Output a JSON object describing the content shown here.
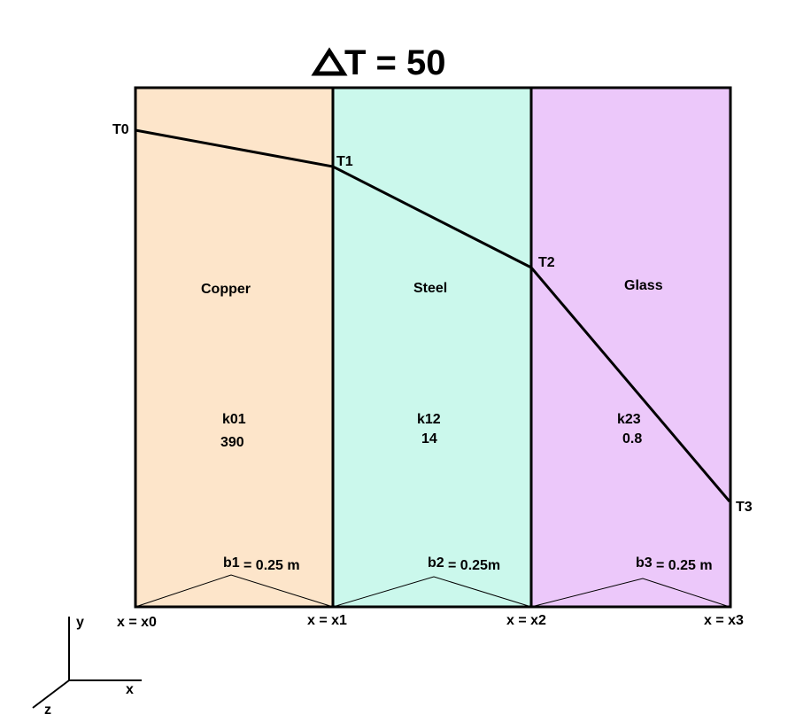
{
  "title": {
    "prefix": "Δ",
    "rest": "T = 50"
  },
  "layers": [
    {
      "material": "Copper",
      "k_label": "k01",
      "k_value": "390",
      "b_label": "b1",
      "b_value": "= 0.25 m",
      "color": "#fde5ca"
    },
    {
      "material": "Steel",
      "k_label": "k12",
      "k_value": "14",
      "b_label": "b2",
      "b_value": "= 0.25m",
      "color": "#cbf8ec"
    },
    {
      "material": "Glass",
      "k_label": "k23",
      "k_value": "0.8",
      "b_label": "b3",
      "b_value": "= 0.25 m",
      "color": "#ecc8fa"
    }
  ],
  "temperatures": [
    "T0",
    "T1",
    "T2",
    "T3"
  ],
  "positions": [
    "x = x0",
    "x = x1",
    "x = x2",
    "x = x3"
  ],
  "axes": {
    "y": "y",
    "x": "x",
    "z": "z"
  }
}
